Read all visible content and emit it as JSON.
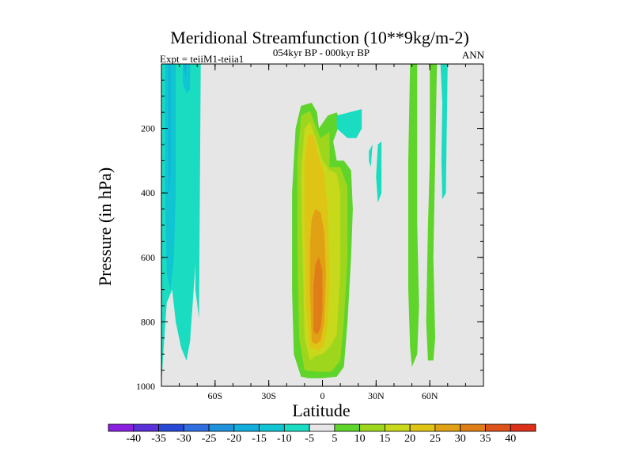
{
  "chart_data": {
    "type": "heatmap",
    "title": "Meridional Streamfunction (10**9kg/m-2)",
    "left_note": "Expt = teiiM1-teiia1",
    "subtitle": "054kyr BP - 000kyr BP",
    "right_note": "ANN",
    "xlabel": "Latitude",
    "ylabel": "Pressure (in hPa)",
    "xlim": [
      -90,
      90
    ],
    "ylim": [
      1000,
      0
    ],
    "x_ticks": [
      {
        "value": -60,
        "label": "60S"
      },
      {
        "value": -30,
        "label": "30S"
      },
      {
        "value": 0,
        "label": "0"
      },
      {
        "value": 30,
        "label": "30N"
      },
      {
        "value": 60,
        "label": "60N"
      }
    ],
    "y_ticks": [
      {
        "value": 200,
        "label": "200"
      },
      {
        "value": 400,
        "label": "400"
      },
      {
        "value": 600,
        "label": "600"
      },
      {
        "value": 800,
        "label": "800"
      },
      {
        "value": 1000,
        "label": "1000"
      }
    ],
    "background_color": "#e6e6e6",
    "colorbar": {
      "levels": [
        "-40",
        "-35",
        "-30",
        "-25",
        "-20",
        "-15",
        "-10",
        "-5",
        "5",
        "10",
        "15",
        "20",
        "25",
        "30",
        "35",
        "40"
      ],
      "colors": [
        "#8a1fe0",
        "#5a30d8",
        "#2848d6",
        "#2f6ee0",
        "#1f92dc",
        "#12aede",
        "#10c4d2",
        "#19dcc0",
        "#e6e6e6",
        "#5fd42a",
        "#9ed61e",
        "#c8d81a",
        "#dfc416",
        "#e0a214",
        "#df7e18",
        "#dd5218",
        "#dc3018"
      ]
    },
    "contour_fields": [
      {
        "level": 5,
        "color": "#5fd42a",
        "polygon": [
          [
            -12,
            970
          ],
          [
            -16,
            900
          ],
          [
            -17,
            700
          ],
          [
            -17,
            400
          ],
          [
            -15,
            200
          ],
          [
            -12,
            130
          ],
          [
            -6,
            120
          ],
          [
            -3,
            150
          ],
          [
            -2,
            200
          ],
          [
            3,
            160
          ],
          [
            8,
            150
          ],
          [
            10,
            180
          ],
          [
            6,
            240
          ],
          [
            8,
            300
          ],
          [
            12,
            300
          ],
          [
            16,
            330
          ],
          [
            17,
            450
          ],
          [
            16,
            600
          ],
          [
            14,
            800
          ],
          [
            12,
            940
          ],
          [
            8,
            970
          ],
          [
            0,
            975
          ],
          [
            -8,
            975
          ]
        ]
      },
      {
        "level": 10,
        "color": "#9ed61e",
        "polygon": [
          [
            -10,
            950
          ],
          [
            -13,
            850
          ],
          [
            -14,
            600
          ],
          [
            -14,
            300
          ],
          [
            -12,
            160
          ],
          [
            -7,
            145
          ],
          [
            -4,
            190
          ],
          [
            -1,
            230
          ],
          [
            4,
            210
          ],
          [
            4,
            320
          ],
          [
            10,
            320
          ],
          [
            14,
            380
          ],
          [
            14,
            600
          ],
          [
            12,
            800
          ],
          [
            10,
            920
          ],
          [
            5,
            955
          ],
          [
            -3,
            955
          ]
        ]
      },
      {
        "level": 15,
        "color": "#c8d81a",
        "polygon": [
          [
            -7,
            920
          ],
          [
            -10,
            850
          ],
          [
            -11,
            600
          ],
          [
            -12,
            350
          ],
          [
            -10,
            200
          ],
          [
            -7,
            180
          ],
          [
            -3,
            240
          ],
          [
            0,
            300
          ],
          [
            4,
            330
          ],
          [
            8,
            340
          ],
          [
            10,
            400
          ],
          [
            10,
            650
          ],
          [
            8,
            840
          ],
          [
            4,
            880
          ],
          [
            0,
            900
          ],
          [
            -4,
            905
          ]
        ]
      },
      {
        "level": 20,
        "color": "#dfc416",
        "polygon": [
          [
            -7,
            880
          ],
          [
            -9,
            750
          ],
          [
            -10,
            500
          ],
          [
            -10,
            300
          ],
          [
            -8,
            220
          ],
          [
            -5,
            220
          ],
          [
            -2,
            290
          ],
          [
            1,
            340
          ],
          [
            3,
            460
          ],
          [
            4,
            650
          ],
          [
            3,
            800
          ],
          [
            1,
            870
          ],
          [
            -2,
            890
          ]
        ]
      },
      {
        "level": 25,
        "color": "#e0a214",
        "polygon": [
          [
            -6,
            860
          ],
          [
            -7,
            700
          ],
          [
            -7,
            560
          ],
          [
            -6,
            480
          ],
          [
            -4,
            450
          ],
          [
            -1,
            460
          ],
          [
            1,
            520
          ],
          [
            2,
            650
          ],
          [
            1,
            800
          ],
          [
            -1,
            860
          ],
          [
            -4,
            870
          ]
        ]
      },
      {
        "level": 30,
        "color": "#df7e18",
        "polygon": [
          [
            -5,
            830
          ],
          [
            -5,
            690
          ],
          [
            -4,
            620
          ],
          [
            -2,
            600
          ],
          [
            0,
            640
          ],
          [
            0,
            760
          ],
          [
            -1,
            820
          ],
          [
            -3,
            840
          ]
        ]
      },
      {
        "level": -5,
        "color": "#19dcc0",
        "polygon": [
          [
            -90,
            0
          ],
          [
            -70,
            0
          ],
          [
            -70,
            550
          ],
          [
            -72,
            700
          ],
          [
            -74,
            860
          ],
          [
            -76,
            920
          ],
          [
            -79,
            880
          ],
          [
            -82,
            800
          ],
          [
            -84,
            700
          ],
          [
            -87,
            740
          ],
          [
            -89,
            900
          ],
          [
            -90,
            1000
          ]
        ]
      },
      {
        "level": -10,
        "color": "#10c4d2",
        "polygon": [
          [
            -88,
            0
          ],
          [
            -82,
            0
          ],
          [
            -82,
            400
          ],
          [
            -83,
            600
          ],
          [
            -85,
            700
          ],
          [
            -87,
            650
          ],
          [
            -88,
            400
          ]
        ]
      },
      {
        "level": -15,
        "color": "#12aede",
        "polygon": [
          [
            -86,
            0
          ],
          [
            -85,
            0
          ],
          [
            -85,
            350
          ],
          [
            -85.8,
            400
          ],
          [
            -86,
            250
          ]
        ]
      },
      {
        "level": -10,
        "color": "#10c4d2",
        "polygon": [
          [
            -78,
            0
          ],
          [
            -74,
            0
          ],
          [
            -74,
            80
          ],
          [
            -76,
            90
          ],
          [
            -78,
            60
          ]
        ]
      },
      {
        "level": -15,
        "color": "#12aede",
        "polygon": [
          [
            -77.5,
            0
          ],
          [
            -76,
            0
          ],
          [
            -76.5,
            40
          ]
        ]
      },
      {
        "level": -5,
        "color": "#19dcc0",
        "polygon": [
          [
            -70,
            0
          ],
          [
            -68,
            0
          ],
          [
            -69,
            790
          ],
          [
            -71,
            700
          ],
          [
            -71,
            400
          ]
        ]
      },
      {
        "level": 5,
        "color": "#5fd42a",
        "polygon": [
          [
            49,
            0
          ],
          [
            53,
            0
          ],
          [
            53,
            500
          ],
          [
            54,
            750
          ],
          [
            53,
            900
          ],
          [
            50,
            940
          ],
          [
            49,
            880
          ],
          [
            48,
            700
          ],
          [
            48,
            300
          ]
        ]
      },
      {
        "level": 5,
        "color": "#5fd42a",
        "polygon": [
          [
            60,
            0
          ],
          [
            64,
            0
          ],
          [
            63,
            300
          ],
          [
            62,
            600
          ],
          [
            63,
            850
          ],
          [
            62,
            920
          ],
          [
            59,
            920
          ],
          [
            58,
            800
          ],
          [
            59,
            500
          ],
          [
            60,
            300
          ]
        ]
      },
      {
        "level": -5,
        "color": "#19dcc0",
        "polygon": [
          [
            66,
            0
          ],
          [
            70,
            0
          ],
          [
            69.5,
            200
          ],
          [
            69,
            400
          ],
          [
            67,
            420
          ],
          [
            66.5,
            300
          ],
          [
            67,
            120
          ]
        ]
      },
      {
        "level": -5,
        "color": "#19dcc0",
        "polygon": [
          [
            8,
            160
          ],
          [
            22,
            140
          ],
          [
            22,
            200
          ],
          [
            19,
            230
          ],
          [
            14,
            230
          ],
          [
            8,
            200
          ]
        ]
      },
      {
        "level": -5,
        "color": "#19dcc0",
        "polygon": [
          [
            26,
            270
          ],
          [
            28,
            250
          ],
          [
            27,
            320
          ],
          [
            26,
            300
          ]
        ]
      },
      {
        "level": -5,
        "color": "#19dcc0",
        "polygon": [
          [
            31,
            250
          ],
          [
            33,
            240
          ],
          [
            33,
            400
          ],
          [
            31,
            430
          ],
          [
            30,
            350
          ]
        ]
      }
    ]
  }
}
